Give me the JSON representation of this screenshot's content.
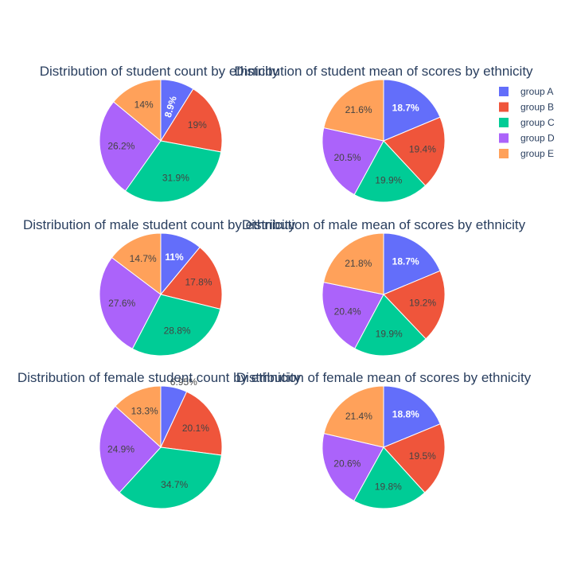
{
  "legend": {
    "placement": "top-right",
    "items": [
      {
        "name": "group A",
        "color": "#636efa"
      },
      {
        "name": "group B",
        "color": "#EF553B"
      },
      {
        "name": "group C",
        "color": "#00cc96"
      },
      {
        "name": "group D",
        "color": "#ab63fa"
      },
      {
        "name": "group E",
        "color": "#FFA15A"
      }
    ]
  },
  "chart_data": [
    {
      "type": "pie",
      "title": "Distribution of student count by ethnicity",
      "labels": [
        "group A",
        "group B",
        "group C",
        "group D",
        "group E"
      ],
      "values": [
        8.9,
        19,
        31.9,
        26.2,
        14
      ],
      "text": [
        "8.9%",
        "19%",
        "31.9%",
        "26.2%",
        "14%"
      ]
    },
    {
      "type": "pie",
      "title": "Distribution of student mean of scores by ethnicity",
      "labels": [
        "group A",
        "group B",
        "group C",
        "group D",
        "group E"
      ],
      "values": [
        18.7,
        19.4,
        19.9,
        20.5,
        21.6
      ],
      "text": [
        "18.7%",
        "19.4%",
        "19.9%",
        "20.5%",
        "21.6%"
      ]
    },
    {
      "type": "pie",
      "title": "Distribution of male student count by ethnicity",
      "labels": [
        "group A",
        "group B",
        "group C",
        "group D",
        "group E"
      ],
      "values": [
        11,
        17.8,
        28.8,
        27.6,
        14.7
      ],
      "text": [
        "11%",
        "17.8%",
        "28.8%",
        "27.6%",
        "14.7%"
      ]
    },
    {
      "type": "pie",
      "title": "Distribution of male mean of scores by ethnicity",
      "labels": [
        "group A",
        "group B",
        "group C",
        "group D",
        "group E"
      ],
      "values": [
        18.7,
        19.2,
        19.9,
        20.4,
        21.8
      ],
      "text": [
        "18.7%",
        "19.2%",
        "19.9%",
        "20.4%",
        "21.8%"
      ]
    },
    {
      "type": "pie",
      "title": "Distribution of female student count by ethnicity",
      "labels": [
        "group A",
        "group B",
        "group C",
        "group D",
        "group E"
      ],
      "values": [
        6.95,
        20.1,
        34.7,
        24.9,
        13.3
      ],
      "text": [
        "6.95%",
        "20.1%",
        "34.7%",
        "24.9%",
        "13.3%"
      ]
    },
    {
      "type": "pie",
      "title": "Distribution of female mean of scores by ethnicity",
      "labels": [
        "group A",
        "group B",
        "group C",
        "group D",
        "group E"
      ],
      "values": [
        18.8,
        19.5,
        19.8,
        20.6,
        21.4
      ],
      "text": [
        "18.8%",
        "19.5%",
        "19.8%",
        "20.6%",
        "21.4%"
      ]
    }
  ]
}
